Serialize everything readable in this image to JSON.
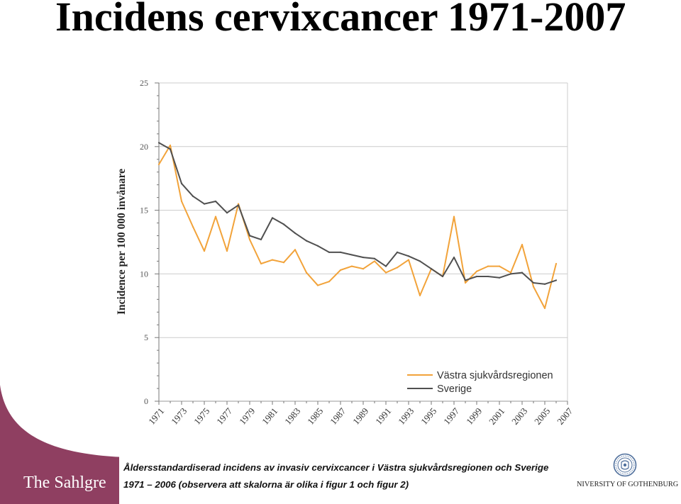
{
  "slide": {
    "caption": [
      "Åldersstandardiserad incidens av invasiv cervixcancer i Västra sjukvårdsregionen och Sverige",
      "1971 – 2006 (observera att skalorna är olika i figur 1 och figur 2)"
    ],
    "brand_text": "The Sahlgre",
    "university_name": "NIVERSITY OF GOTHENBURG",
    "logo_icon": "university-seal-icon"
  },
  "colors": {
    "brand_maroon": "#8f3f61",
    "seal_blue": "#4f6f9c"
  },
  "chart_data": {
    "type": "line",
    "title": "Incidens cervixcancer 1971-2007",
    "xlabel": "",
    "ylabel": "Incidence per 100 000 invånare",
    "ylim": [
      0,
      25
    ],
    "xlim": [
      1971,
      2007
    ],
    "yticks": [
      "0",
      "5",
      "10",
      "15",
      "20",
      "25"
    ],
    "xticks": [
      "1971",
      "1973",
      "1975",
      "1977",
      "1979",
      "1981",
      "1983",
      "1985",
      "1987",
      "1989",
      "1991",
      "1993",
      "1995",
      "1997",
      "1999",
      "2001",
      "2003",
      "2005",
      "2007"
    ],
    "grid": true,
    "legend": "bottom-right",
    "x": [
      1971,
      1972,
      1973,
      1974,
      1975,
      1976,
      1977,
      1978,
      1979,
      1980,
      1981,
      1982,
      1983,
      1984,
      1985,
      1986,
      1987,
      1988,
      1989,
      1990,
      1991,
      1992,
      1993,
      1994,
      1995,
      1996,
      1997,
      1998,
      1999,
      2000,
      2001,
      2002,
      2003,
      2004,
      2005,
      2006
    ],
    "series": [
      {
        "name": "Västra sjukvårdsregionen",
        "color": "#f2a33a",
        "values": [
          18.6,
          20.1,
          15.7,
          13.7,
          11.8,
          14.5,
          11.8,
          15.5,
          12.7,
          10.8,
          11.1,
          10.9,
          11.9,
          10.1,
          9.1,
          9.4,
          10.3,
          10.6,
          10.4,
          11.0,
          10.1,
          10.5,
          11.1,
          8.3,
          10.4,
          9.8,
          14.5,
          9.3,
          10.2,
          10.6,
          10.6,
          10.1,
          12.3,
          9.0,
          7.3,
          10.8
        ]
      },
      {
        "name": "Sverige",
        "color": "#505050",
        "values": [
          20.3,
          19.8,
          17.1,
          16.1,
          15.5,
          15.7,
          14.8,
          15.4,
          13.0,
          12.7,
          14.4,
          13.9,
          13.2,
          12.6,
          12.2,
          11.7,
          11.7,
          11.5,
          11.3,
          11.2,
          10.6,
          11.7,
          11.4,
          11.0,
          10.4,
          9.8,
          11.3,
          9.5,
          9.8,
          9.8,
          9.7,
          10.0,
          10.1,
          9.3,
          9.2,
          9.5
        ]
      }
    ]
  }
}
